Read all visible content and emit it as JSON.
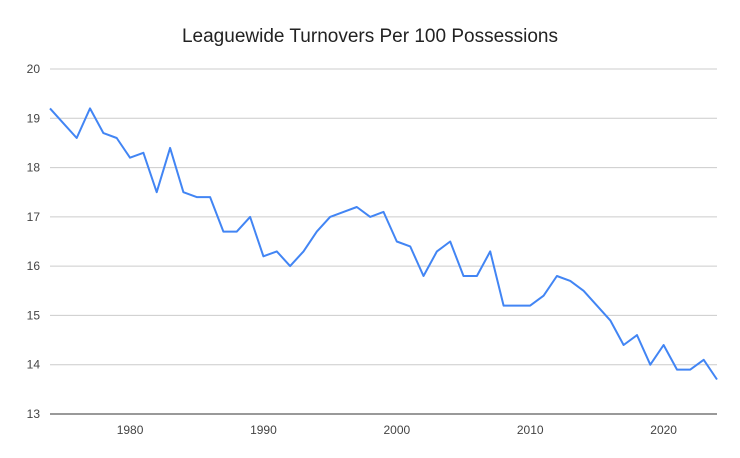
{
  "chart_data": {
    "type": "line",
    "title": "Leaguewide Turnovers Per 100 Possessions",
    "xlabel": "",
    "ylabel": "",
    "xlim": [
      1974,
      2024
    ],
    "ylim": [
      13,
      20
    ],
    "grid": true,
    "legend": "none",
    "line_color": "#4285f4",
    "x_ticks": [
      "1980",
      "1990",
      "2000",
      "2010",
      "2020"
    ],
    "y_ticks": [
      "13",
      "14",
      "15",
      "16",
      "17",
      "18",
      "19",
      "20"
    ],
    "x": [
      1974,
      1975,
      1976,
      1977,
      1978,
      1979,
      1980,
      1981,
      1982,
      1983,
      1984,
      1985,
      1986,
      1987,
      1988,
      1989,
      1990,
      1991,
      1992,
      1993,
      1994,
      1995,
      1996,
      1997,
      1998,
      1999,
      2000,
      2001,
      2002,
      2003,
      2004,
      2005,
      2006,
      2007,
      2008,
      2009,
      2010,
      2011,
      2012,
      2013,
      2014,
      2015,
      2016,
      2017,
      2018,
      2019,
      2020,
      2021,
      2022,
      2023,
      2024
    ],
    "values": [
      19.2,
      18.9,
      18.6,
      19.2,
      18.7,
      18.6,
      18.2,
      18.3,
      17.5,
      18.4,
      17.5,
      17.4,
      17.4,
      16.7,
      16.7,
      17.0,
      16.2,
      16.3,
      16.0,
      16.3,
      16.7,
      17.0,
      17.1,
      17.2,
      17.0,
      17.1,
      16.5,
      16.4,
      15.8,
      16.3,
      16.5,
      15.8,
      15.8,
      16.3,
      15.2,
      15.2,
      15.2,
      15.4,
      15.8,
      15.7,
      15.5,
      15.2,
      14.9,
      14.4,
      14.6,
      14.0,
      14.4,
      13.9,
      13.9,
      14.1,
      13.7
    ]
  }
}
